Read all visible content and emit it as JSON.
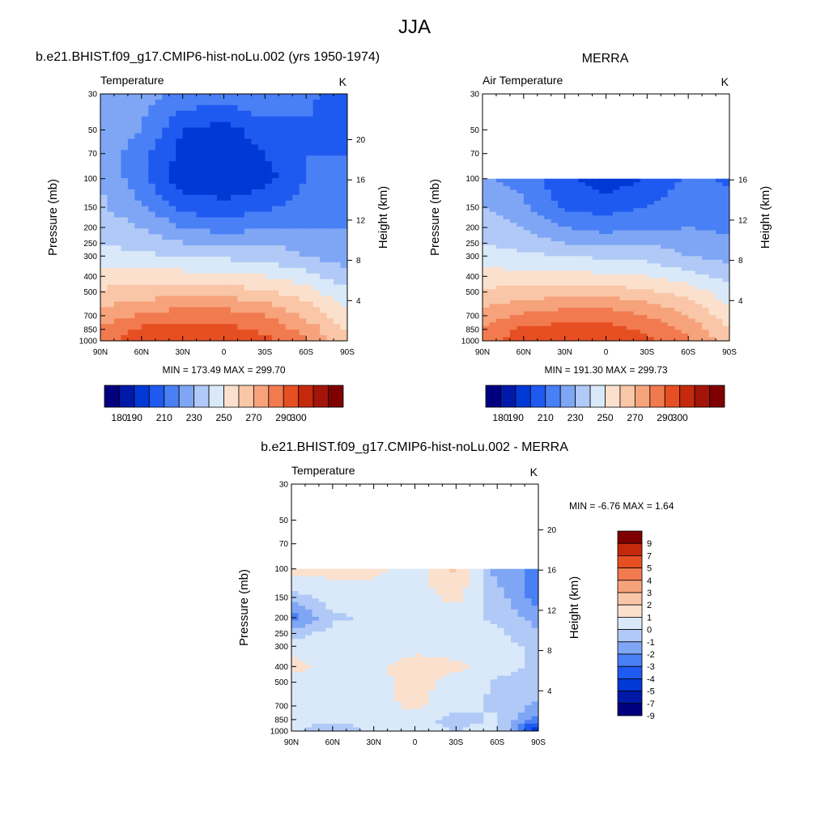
{
  "figure": {
    "title": "JJA",
    "panel_titles": [
      "b.e21.BHIST.f09_g17.CMIP6-hist-noLu.002 (yrs 1950-1974)",
      "MERRA",
      "b.e21.BHIST.f09_g17.CMIP6-hist-noLu.002 - MERRA"
    ],
    "abs_palette": [
      "#00007f",
      "#0019a8",
      "#0039d6",
      "#1f5af0",
      "#4a80f5",
      "#7fa6f5",
      "#b1c9f6",
      "#d9e9f9",
      "#fbe1cd",
      "#f9c6a7",
      "#f6a37c",
      "#f27a4f",
      "#e64f22",
      "#c4290b",
      "#a31508",
      "#7f0000"
    ],
    "abs_levels": [
      180,
      190,
      200,
      210,
      220,
      230,
      240,
      250,
      260,
      270,
      280,
      290,
      300
    ],
    "abs_colorbar_labels": [
      "180",
      "190",
      "210",
      "230",
      "250",
      "270",
      "290",
      "300"
    ],
    "diff_palette": [
      "#00007f",
      "#0019a8",
      "#0039d6",
      "#1f5af0",
      "#4a80f5",
      "#7fa6f5",
      "#b1c9f6",
      "#d9e9f9",
      "#fbe1cd",
      "#f9c6a7",
      "#f6a37c",
      "#f27a4f",
      "#e64f22",
      "#c4290b",
      "#7f0000"
    ],
    "diff_levels": [
      -9,
      -7,
      -5,
      -4,
      -3,
      -2,
      -1,
      0,
      1,
      2,
      3,
      4,
      5,
      7,
      9
    ],
    "diff_colorbar_labels": [
      "9",
      "7",
      "5",
      "4",
      "3",
      "2",
      "1",
      "0",
      "-1",
      "-2",
      "-3",
      "-4",
      "-5",
      "-7",
      "-9"
    ]
  },
  "chart_data": [
    {
      "type": "heatmap",
      "panel": "model",
      "left_label": "Temperature",
      "right_label": "K",
      "ylabel": "Pressure (mb)",
      "y2label": "Height (km)",
      "x_ticklabels": [
        "90N",
        "60N",
        "30N",
        "0",
        "30S",
        "60S",
        "90S"
      ],
      "y_ticklabels": [
        "30",
        "50",
        "70",
        "100",
        "150",
        "200",
        "250",
        "300",
        "400",
        "500",
        "700",
        "850",
        "1000"
      ],
      "y2_ticklabels": [
        "4",
        "8",
        "12",
        "16",
        "20"
      ],
      "minmax_text": "MIN = 173.49  MAX = 299.70",
      "min": 173.49,
      "max": 299.7,
      "units": "K",
      "latitudes": [
        90,
        60,
        30,
        0,
        -30,
        -60,
        -90
      ],
      "pressure_levels": [
        30,
        50,
        70,
        100,
        150,
        200,
        250,
        300,
        400,
        500,
        700,
        850,
        1000
      ],
      "values": [
        [
          226,
          224,
          218,
          215,
          220,
          214,
          200
        ],
        [
          226,
          220,
          200,
          196,
          205,
          208,
          208
        ],
        [
          228,
          214,
          196,
          192,
          200,
          210,
          210
        ],
        [
          230,
          212,
          194,
          190,
          196,
          210,
          212
        ],
        [
          232,
          222,
          206,
          204,
          208,
          214,
          216
        ],
        [
          236,
          230,
          220,
          216,
          218,
          220,
          220
        ],
        [
          240,
          236,
          230,
          228,
          230,
          226,
          222
        ],
        [
          244,
          242,
          240,
          238,
          236,
          230,
          224
        ],
        [
          254,
          254,
          254,
          252,
          250,
          244,
          234
        ],
        [
          262,
          264,
          266,
          266,
          262,
          254,
          242
        ],
        [
          274,
          282,
          286,
          286,
          280,
          268,
          252
        ],
        [
          282,
          292,
          294,
          294,
          288,
          276,
          258
        ],
        [
          286,
          296,
          299,
          299,
          292,
          280,
          262
        ]
      ]
    },
    {
      "type": "heatmap",
      "panel": "reanalysis",
      "left_label": "Air Temperature",
      "right_label": "K",
      "ylabel": "Pressure (mb)",
      "y2label": "Height (km)",
      "x_ticklabels": [
        "90N",
        "60N",
        "30N",
        "0",
        "30S",
        "60S",
        "90S"
      ],
      "y_ticklabels": [
        "30",
        "50",
        "70",
        "100",
        "150",
        "200",
        "250",
        "300",
        "400",
        "500",
        "700",
        "850",
        "1000"
      ],
      "y2_ticklabels": [
        "4",
        "8",
        "12",
        "16"
      ],
      "minmax_text": "MIN = 191.30  MAX = 299.73",
      "min": 191.3,
      "max": 299.73,
      "units": "K",
      "latitudes": [
        90,
        60,
        30,
        0,
        -30,
        -60,
        -90
      ],
      "pressure_levels": [
        100,
        150,
        200,
        250,
        300,
        400,
        500,
        700,
        850,
        1000
      ],
      "values": [
        [
          222,
          216,
          202,
          194,
          200,
          212,
          208
        ],
        [
          230,
          222,
          208,
          206,
          210,
          218,
          214
        ],
        [
          236,
          230,
          220,
          216,
          218,
          220,
          218
        ],
        [
          240,
          236,
          230,
          228,
          230,
          226,
          222
        ],
        [
          244,
          242,
          240,
          238,
          236,
          230,
          226
        ],
        [
          254,
          254,
          254,
          252,
          250,
          244,
          236
        ],
        [
          262,
          264,
          266,
          266,
          262,
          256,
          244
        ],
        [
          274,
          282,
          286,
          286,
          280,
          270,
          254
        ],
        [
          282,
          292,
          294,
          294,
          288,
          278,
          260
        ],
        [
          286,
          296,
          299,
          299,
          292,
          282,
          264
        ]
      ]
    },
    {
      "type": "heatmap",
      "panel": "difference",
      "left_label": "Temperature",
      "right_label": "K",
      "ylabel": "Pressure (mb)",
      "y2label": "Height (km)",
      "x_ticklabels": [
        "90N",
        "60N",
        "30N",
        "0",
        "30S",
        "60S",
        "90S"
      ],
      "y_ticklabels": [
        "30",
        "50",
        "70",
        "100",
        "150",
        "200",
        "250",
        "300",
        "400",
        "500",
        "700",
        "850",
        "1000"
      ],
      "y2_ticklabels": [
        "4",
        "8",
        "12",
        "16",
        "20"
      ],
      "minmax_text": "MIN =  -6.76  MAX =   1.64",
      "min": -6.76,
      "max": 1.64,
      "units": "K",
      "latitudes": [
        90,
        60,
        30,
        0,
        -30,
        -60,
        -90
      ],
      "pressure_levels": [
        100,
        150,
        200,
        250,
        300,
        400,
        500,
        700,
        850,
        1000
      ],
      "values": [
        [
          0.4,
          0.3,
          0.2,
          -0.4,
          1.2,
          -2.5,
          -3.2
        ],
        [
          -1.5,
          -0.5,
          -0.3,
          -0.5,
          0.3,
          -1.5,
          -3.6
        ],
        [
          -3.5,
          -1.2,
          -0.8,
          -0.5,
          -0.6,
          -1.2,
          -2.5
        ],
        [
          -1.5,
          -0.6,
          -0.5,
          -0.4,
          -0.5,
          -0.8,
          -1.8
        ],
        [
          -0.4,
          -0.4,
          -0.3,
          -0.3,
          -0.4,
          -0.6,
          -1.2
        ],
        [
          0.3,
          -0.4,
          -0.2,
          0.4,
          0.2,
          -0.5,
          -1.2
        ],
        [
          -0.3,
          -0.5,
          -0.3,
          0.3,
          -0.3,
          -1.2,
          -1.5
        ],
        [
          -0.3,
          -0.6,
          -0.3,
          0.2,
          -0.5,
          -1.2,
          -2.2
        ],
        [
          -0.6,
          -0.8,
          -0.6,
          -0.4,
          -1.5,
          -0.8,
          -3.5
        ],
        [
          -0.8,
          -1.8,
          -0.8,
          -0.6,
          -1.0,
          -0.5,
          -6.8
        ]
      ]
    }
  ]
}
